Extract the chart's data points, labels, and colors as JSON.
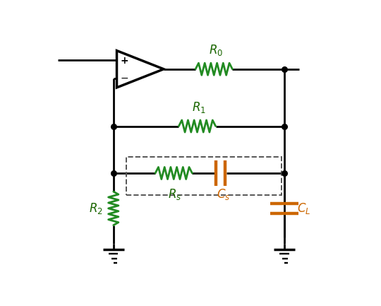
{
  "bg_color": "#ffffff",
  "wire_color": "#000000",
  "resistor_color": "#228B22",
  "capacitor_color": "#CC6600",
  "label_green": "#1a6600",
  "label_orange": "#CC6600",
  "dashed_color": "#555555",
  "figsize": [
    5.4,
    4.33
  ],
  "dpi": 100,
  "lw_wire": 2.0,
  "lw_comp": 2.0
}
